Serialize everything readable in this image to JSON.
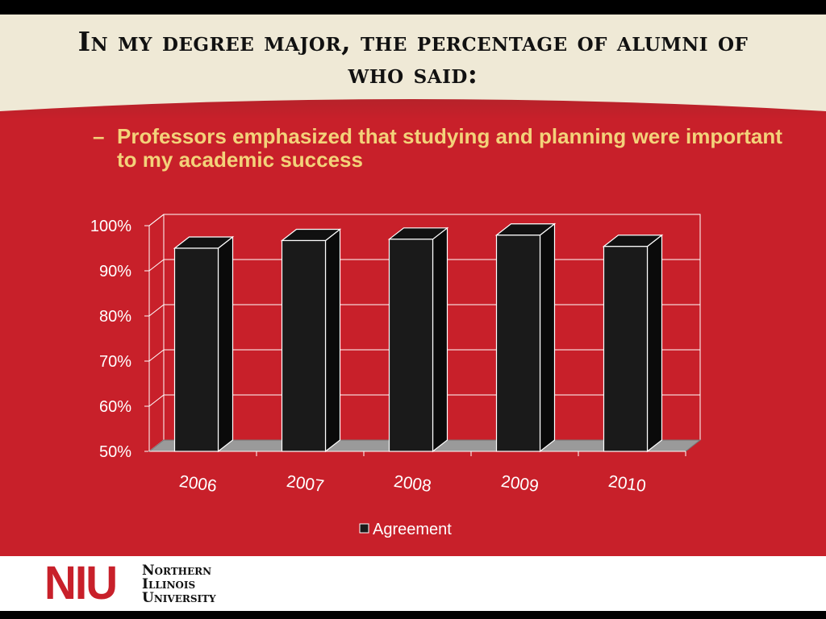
{
  "slide": {
    "title": "In my degree major, the percentage of alumni of who said:",
    "bullet_marker": "–",
    "bullet": "Professors emphasized that studying and planning were important to my academic success"
  },
  "colors": {
    "background": "#c8202a",
    "title_band": "#efe9d6",
    "bullet_text": "#f3d27a",
    "bar_front": "#1a1a1a",
    "bar_top": "#111111",
    "bar_side": "#0a0a0a",
    "floor": "#9a9a9a",
    "grid": "#ffffff"
  },
  "chart_data": {
    "type": "bar",
    "categories": [
      "2006",
      "2007",
      "2008",
      "2009",
      "2010"
    ],
    "series": [
      {
        "name": "Agreement",
        "values": [
          95,
          96.7,
          97,
          97.9,
          95.4
        ]
      }
    ],
    "ylim": [
      50,
      100
    ],
    "yticks": [
      50,
      60,
      70,
      80,
      90,
      100
    ],
    "ytick_labels": [
      "50%",
      "60%",
      "70%",
      "80%",
      "90%",
      "100%"
    ],
    "legend_position": "bottom",
    "grid": true,
    "style": "3d-column"
  },
  "footer": {
    "logo_mark": "NIU",
    "logo_lines": [
      "Northern",
      "Illinois",
      "University"
    ]
  }
}
